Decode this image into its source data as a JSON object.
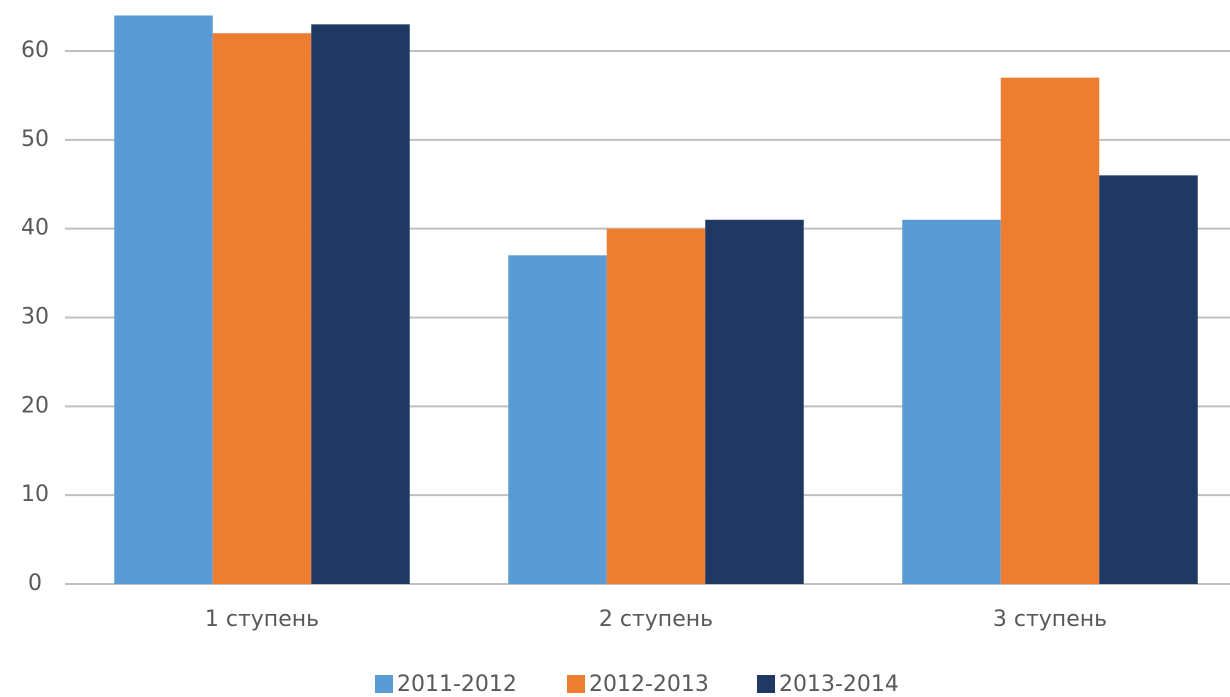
{
  "chart_data": {
    "type": "bar",
    "categories": [
      "1 ступень",
      "2 ступень",
      "3 ступень"
    ],
    "series": [
      {
        "name": "2011-2012",
        "color": "#5b9bd5",
        "values": [
          64,
          37,
          41
        ]
      },
      {
        "name": "2012-2013",
        "color": "#ed7d31",
        "values": [
          62,
          40,
          57
        ]
      },
      {
        "name": "2013-2014",
        "color": "#1f3864",
        "values": [
          63,
          41,
          46
        ]
      }
    ],
    "ylim": [
      0,
      65
    ],
    "yticks": [
      0,
      10,
      20,
      30,
      40,
      50,
      60
    ],
    "grid": true,
    "legend": "bottom"
  }
}
